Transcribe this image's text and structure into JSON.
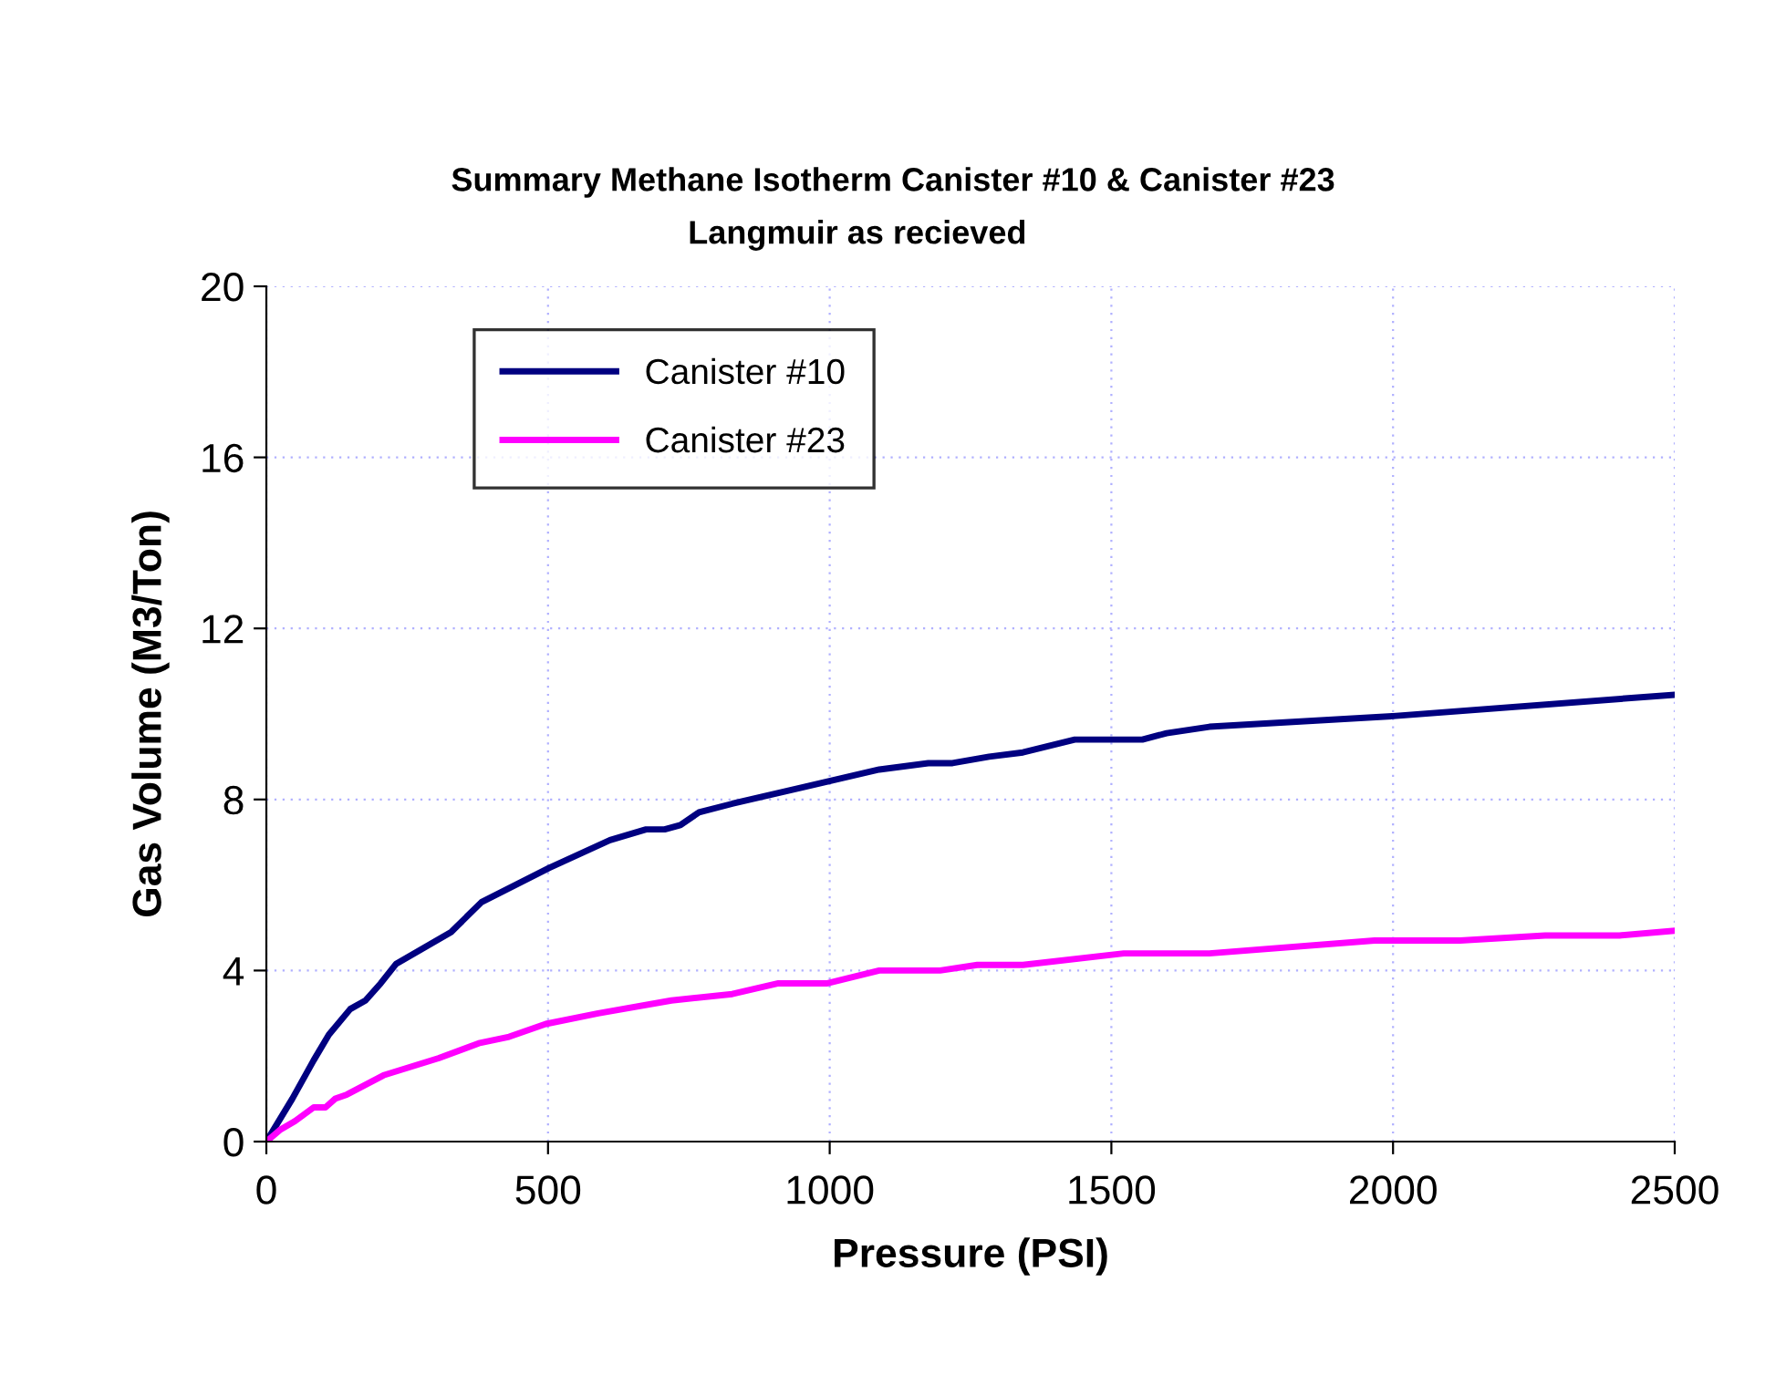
{
  "chart_data": {
    "type": "line",
    "title": "Summary Methane Isotherm Canister #10 & Canister #23",
    "subtitle": "Langmuir as recieved",
    "xlabel": "Pressure (PSI)",
    "ylabel": "Gas Volume (M3/Ton)",
    "xlim": [
      0,
      2500
    ],
    "xticks": [
      0,
      500,
      1000,
      1500,
      2000,
      2500
    ],
    "ylim": [
      0,
      20
    ],
    "yticks": [
      0,
      4,
      8,
      12,
      16,
      20
    ],
    "grid": true,
    "legend": "top left",
    "marker": "none",
    "line_style": "solid",
    "series": [
      {
        "name": "Canister #10",
        "color": "#000080",
        "x": [
          0,
          46,
          84,
          111,
          149,
          176,
          203,
          230,
          328,
          382,
          502,
          610,
          674,
          707,
          735,
          768,
          827,
          958,
          1088,
          1175,
          1218,
          1283,
          1343,
          1435,
          1555,
          1598,
          1674,
          2000,
          2500
        ],
        "values": [
          0,
          1.0,
          1.9,
          2.5,
          3.1,
          3.3,
          3.7,
          4.15,
          4.9,
          5.6,
          6.4,
          7.05,
          7.3,
          7.3,
          7.4,
          7.7,
          7.9,
          8.3,
          8.7,
          8.85,
          8.85,
          9.0,
          9.1,
          9.4,
          9.4,
          9.55,
          9.7,
          9.95,
          10.45
        ]
      },
      {
        "name": "Canister #23",
        "color": "#ff00ff",
        "x": [
          0,
          24,
          51,
          84,
          105,
          122,
          143,
          208,
          306,
          377,
          431,
          496,
          589,
          719,
          827,
          909,
          996,
          1088,
          1196,
          1262,
          1343,
          1522,
          1674,
          1967,
          2119,
          2270,
          2402,
          2500
        ],
        "values": [
          0,
          0.27,
          0.48,
          0.8,
          0.8,
          1.0,
          1.1,
          1.55,
          1.95,
          2.3,
          2.45,
          2.75,
          3.0,
          3.3,
          3.45,
          3.7,
          3.7,
          4.0,
          4.0,
          4.13,
          4.13,
          4.4,
          4.4,
          4.7,
          4.7,
          4.82,
          4.82,
          4.93
        ]
      }
    ]
  }
}
